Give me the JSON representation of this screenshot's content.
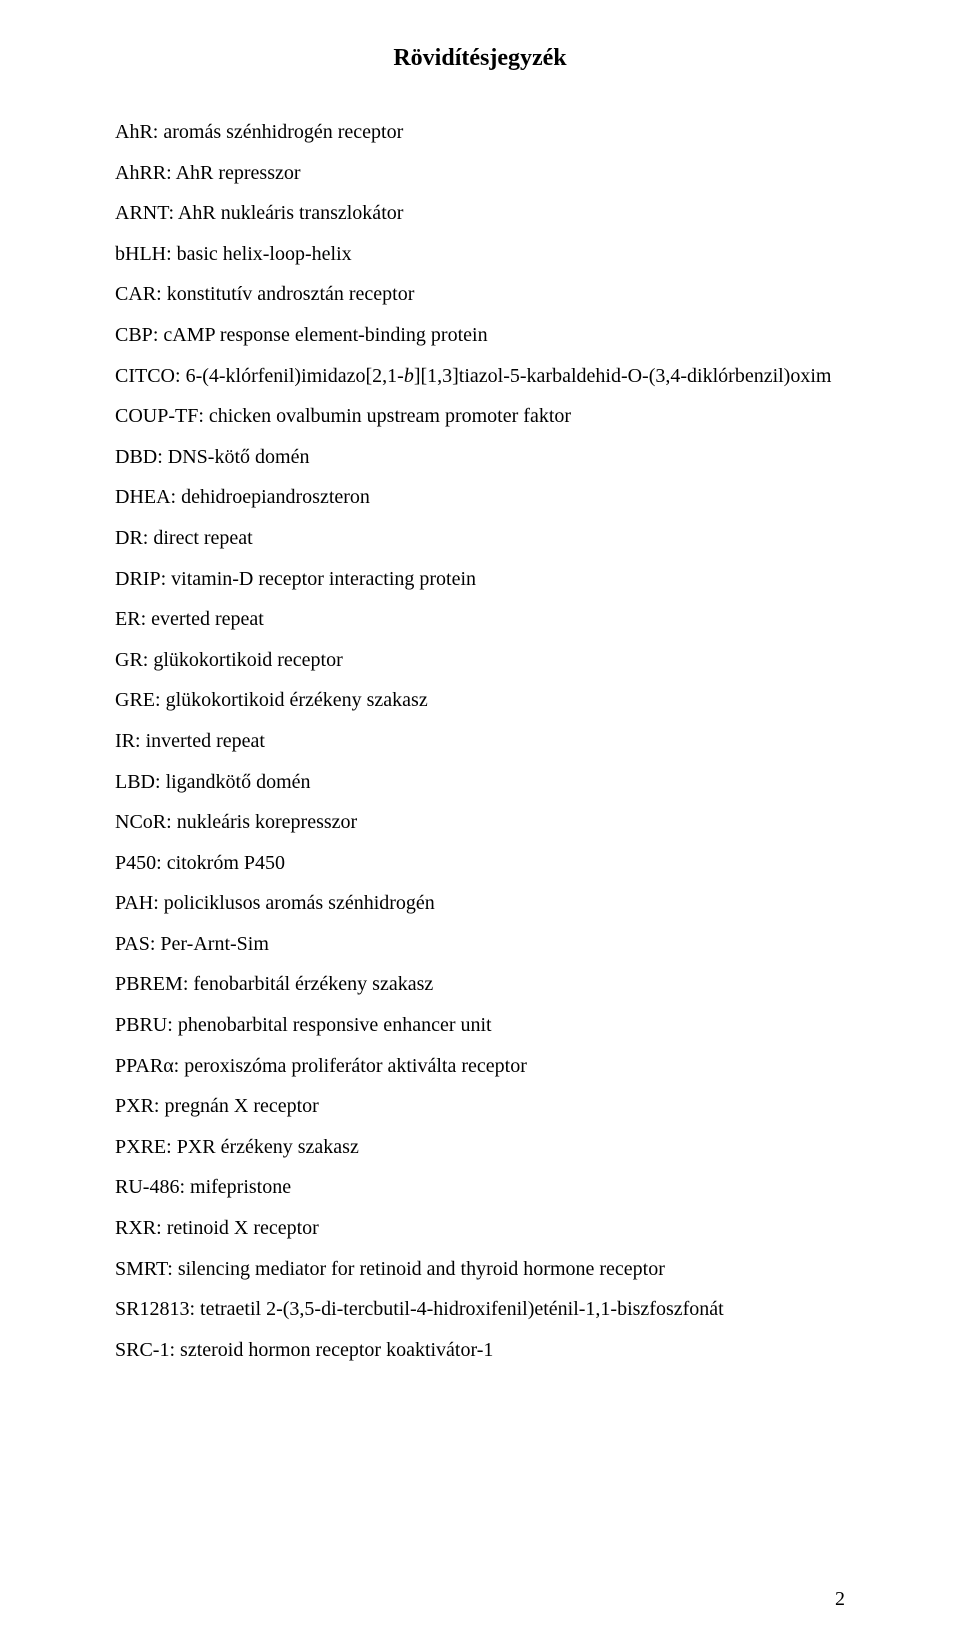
{
  "title": "Rövidítésjegyzék",
  "entries": [
    {
      "abbr": "AhR",
      "desc": "aromás szénhidrogén receptor"
    },
    {
      "abbr": "AhRR",
      "desc": "AhR represszor"
    },
    {
      "abbr": "ARNT",
      "desc": "AhR nukleáris transzlokátor"
    },
    {
      "abbr": "bHLH",
      "desc": "basic helix-loop-helix"
    },
    {
      "abbr": "CAR",
      "desc": "konstitutív androsztán receptor"
    },
    {
      "abbr": "CBP",
      "desc": "cAMP response element-binding protein"
    },
    {
      "abbr": "CITCO",
      "desc_prefix": "6-(4-klórfenil)imidazo[2,1-",
      "desc_italic": "b",
      "desc_suffix": "][1,3]tiazol-5-karbaldehid-O-(3,4-diklórbenzil)oxim"
    },
    {
      "abbr": "COUP-TF",
      "desc": "chicken ovalbumin upstream promoter faktor"
    },
    {
      "abbr": "DBD",
      "desc": "DNS-kötő domén"
    },
    {
      "abbr": "DHEA",
      "desc": "dehidroepiandroszteron"
    },
    {
      "abbr": "DR",
      "desc": "direct repeat"
    },
    {
      "abbr": "DRIP",
      "desc": "vitamin-D receptor interacting protein"
    },
    {
      "abbr": "ER",
      "desc": "everted repeat"
    },
    {
      "abbr": "GR",
      "desc": "glükokortikoid receptor"
    },
    {
      "abbr": "GRE",
      "desc": "glükokortikoid érzékeny szakasz"
    },
    {
      "abbr": "IR",
      "desc": "inverted repeat"
    },
    {
      "abbr": "LBD",
      "desc": "ligandkötő domén"
    },
    {
      "abbr": "NCoR",
      "desc": "nukleáris korepresszor"
    },
    {
      "abbr": "P450",
      "desc": "citokróm P450"
    },
    {
      "abbr": "PAH",
      "desc": "policiklusos aromás szénhidrogén"
    },
    {
      "abbr": "PAS",
      "desc": "Per-Arnt-Sim"
    },
    {
      "abbr": "PBREM",
      "desc": "fenobarbitál érzékeny szakasz"
    },
    {
      "abbr": "PBRU",
      "desc": "phenobarbital responsive enhancer unit"
    },
    {
      "abbr": "PPARα",
      "desc": "peroxiszóma proliferátor aktiválta receptor"
    },
    {
      "abbr": "PXR",
      "desc": "pregnán X receptor"
    },
    {
      "abbr": "PXRE",
      "desc": "PXR érzékeny szakasz"
    },
    {
      "abbr": "RU-486",
      "desc": "mifepristone"
    },
    {
      "abbr": "RXR",
      "desc": "retinoid X receptor"
    },
    {
      "abbr": "SMRT",
      "desc": "silencing mediator for retinoid and thyroid hormone receptor"
    },
    {
      "abbr": "SR12813",
      "desc": "tetraetil 2-(3,5-di-tercbutil-4-hidroxifenil)eténil-1,1-biszfoszfonát"
    },
    {
      "abbr": "SRC-1",
      "desc": "szteroid hormon receptor koaktivátor-1"
    }
  ],
  "page_number": "2"
}
